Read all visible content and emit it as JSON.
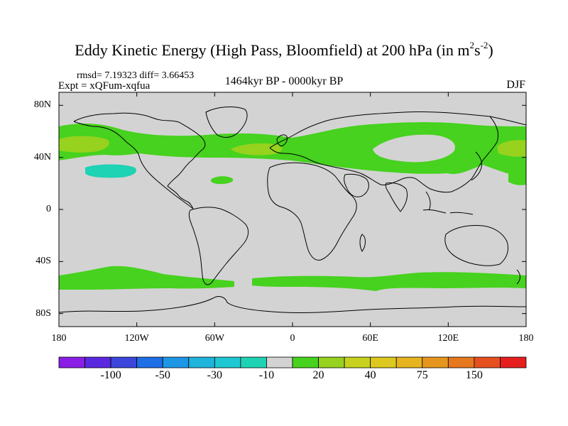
{
  "title": "Eddy Kinetic Energy (High Pass, Bloomfield) at 200 hPa (in m",
  "title_unit_exp1": "2",
  "title_unit_mid": "s",
  "title_unit_exp2": "-2",
  "title_close": ")",
  "stats": "rmsd= 7.19323 diff= 3.66453",
  "experiment": "Expt = xQFum-xqfua",
  "period": "1464kyr BP - 0000kyr BP",
  "season": "DJF",
  "map": {
    "projection": "cylindrical equidistant",
    "lon_range": [
      -180,
      180
    ],
    "lat_range": [
      -90,
      90
    ],
    "background_color": "#d3d3d3",
    "coastline_color": "#000000",
    "lat_ticks": [
      {
        "value": 80,
        "label": "80N"
      },
      {
        "value": 40,
        "label": "40N"
      },
      {
        "value": 0,
        "label": "0"
      },
      {
        "value": -40,
        "label": "40S"
      },
      {
        "value": -80,
        "label": "80S"
      }
    ],
    "lon_ticks": [
      {
        "value": -180,
        "label": "180"
      },
      {
        "value": -120,
        "label": "120W"
      },
      {
        "value": -60,
        "label": "60W"
      },
      {
        "value": 0,
        "label": "0"
      },
      {
        "value": 60,
        "label": "60E"
      },
      {
        "value": 120,
        "label": "120E"
      },
      {
        "value": 180,
        "label": "180"
      }
    ]
  },
  "colorbar": {
    "colors": [
      "#8a1ee6",
      "#5a28e0",
      "#3c46dc",
      "#1e6ee6",
      "#1e96e6",
      "#1eb4dc",
      "#1ec8d2",
      "#1ed2b4",
      "#d3d3d3",
      "#46d21e",
      "#96d21e",
      "#c8d21e",
      "#dcc81e",
      "#e6b41e",
      "#e6961e",
      "#e6781e",
      "#e6501e",
      "#e61e1e"
    ],
    "labels": [
      "-100",
      "-50",
      "-30",
      "-10",
      "20",
      "40",
      "75",
      "150"
    ],
    "label_positions": [
      2,
      4,
      6,
      8,
      10,
      12,
      14,
      16
    ]
  },
  "field_regions": [
    {
      "level": "10-20",
      "color": "#46d21e",
      "desc": "northern hemisphere jet band"
    },
    {
      "level": "20-30",
      "color": "#96d21e",
      "desc": "jet maxima patches"
    },
    {
      "level": "-20--10",
      "color": "#1ed2b4",
      "desc": "eastern north pacific negative patch"
    },
    {
      "level": "10-20",
      "color": "#46d21e",
      "desc": "southern hemisphere storm track band"
    }
  ]
}
